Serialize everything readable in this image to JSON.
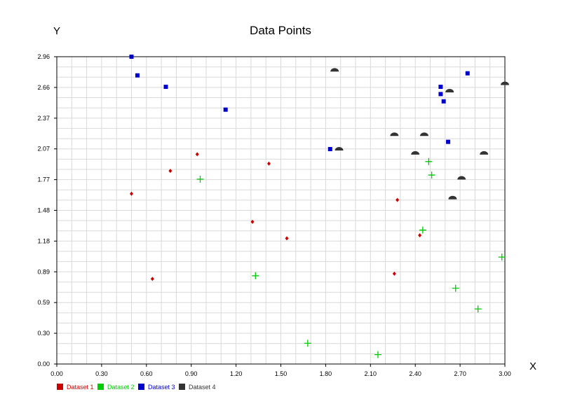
{
  "chart_data": {
    "type": "scatter",
    "title": "Data Points",
    "xlabel": "X",
    "ylabel": "Y",
    "xlim": [
      0,
      3.0
    ],
    "ylim": [
      0,
      2.96
    ],
    "grid": true,
    "x_ticks": [
      "0.00",
      "0.30",
      "0.60",
      "0.90",
      "1.20",
      "1.50",
      "1.80",
      "2.10",
      "2.40",
      "2.70",
      "3.00"
    ],
    "y_ticks": [
      "0.00",
      "0.30",
      "0.59",
      "0.89",
      "1.18",
      "1.48",
      "1.77",
      "2.07",
      "2.37",
      "2.66",
      "2.96"
    ],
    "legend_position": "bottom-left",
    "series": [
      {
        "name": "Dataset 1",
        "color": "#cc0000",
        "marker": "diamond",
        "points": [
          [
            0.5,
            1.64
          ],
          [
            0.64,
            0.82
          ],
          [
            0.76,
            1.86
          ],
          [
            0.94,
            2.02
          ],
          [
            1.31,
            1.37
          ],
          [
            1.42,
            1.93
          ],
          [
            1.54,
            1.21
          ],
          [
            2.26,
            0.87
          ],
          [
            2.28,
            1.58
          ],
          [
            2.43,
            1.24
          ]
        ]
      },
      {
        "name": "Dataset 2",
        "color": "#00cc00",
        "marker": "plus",
        "points": [
          [
            0.96,
            1.78
          ],
          [
            1.33,
            0.85
          ],
          [
            1.68,
            0.2
          ],
          [
            2.15,
            0.09
          ],
          [
            2.45,
            1.29
          ],
          [
            2.49,
            1.95
          ],
          [
            2.51,
            1.82
          ],
          [
            2.67,
            0.73
          ],
          [
            2.82,
            0.53
          ],
          [
            2.98,
            1.03
          ]
        ]
      },
      {
        "name": "Dataset 3",
        "color": "#0000cc",
        "marker": "square",
        "points": [
          [
            0.5,
            2.96
          ],
          [
            0.54,
            2.78
          ],
          [
            0.73,
            2.67
          ],
          [
            1.13,
            2.45
          ],
          [
            1.83,
            2.07
          ],
          [
            2.57,
            2.6
          ],
          [
            2.57,
            2.67
          ],
          [
            2.59,
            2.53
          ],
          [
            2.62,
            2.14
          ],
          [
            2.75,
            2.8
          ]
        ]
      },
      {
        "name": "Dataset 4",
        "color": "#333333",
        "marker": "half-circle",
        "points": [
          [
            1.86,
            2.83
          ],
          [
            1.89,
            2.07
          ],
          [
            2.26,
            2.21
          ],
          [
            2.4,
            2.03
          ],
          [
            2.46,
            2.21
          ],
          [
            2.63,
            2.63
          ],
          [
            2.65,
            1.6
          ],
          [
            2.71,
            1.79
          ],
          [
            2.86,
            2.03
          ],
          [
            3.0,
            2.7
          ]
        ]
      }
    ]
  }
}
